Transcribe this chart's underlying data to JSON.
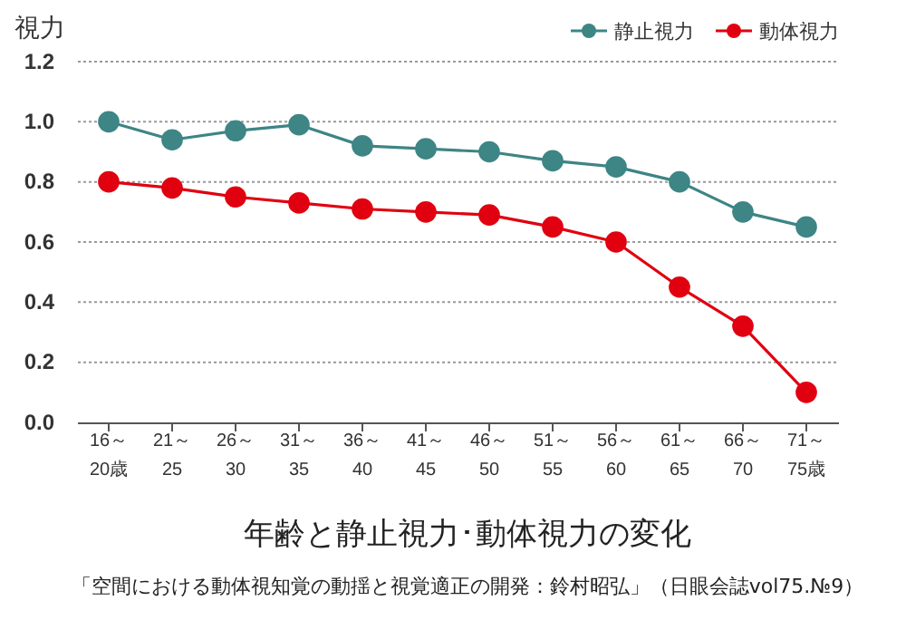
{
  "chart_data": {
    "type": "line",
    "ylabel": "視力",
    "title": "年齢と静止視力･動体視力の変化",
    "annotations": [
      "「空間における動体視知覚の動揺と視覚適正の開発：鈴村昭弘」（日眼会誌vol75.№9）"
    ],
    "categories": [
      "16～\n20歳",
      "21～\n25",
      "26～\n30",
      "31～\n35",
      "36～\n40",
      "41～\n45",
      "46～\n50",
      "51～\n55",
      "56～\n60",
      "61～\n65",
      "66～\n70",
      "71～\n75歳"
    ],
    "series": [
      {
        "name": "静止視力",
        "color": "#3e8585",
        "values": [
          1.0,
          0.94,
          0.97,
          0.99,
          0.92,
          0.91,
          0.9,
          0.87,
          0.85,
          0.8,
          0.7,
          0.65
        ]
      },
      {
        "name": "動体視力",
        "color": "#e00010",
        "values": [
          0.8,
          0.78,
          0.75,
          0.73,
          0.71,
          0.7,
          0.69,
          0.65,
          0.6,
          0.45,
          0.32,
          0.1
        ]
      }
    ],
    "ylim": [
      0,
      1.2
    ],
    "yticks": [
      {
        "value": 0,
        "label": "0.0"
      },
      {
        "value": 0.2,
        "label": "0.2"
      },
      {
        "value": 0.4,
        "label": "0.4"
      },
      {
        "value": 0.6,
        "label": "0.6"
      },
      {
        "value": 0.8,
        "label": "0.8"
      },
      {
        "value": 1.0,
        "label": "1.0"
      },
      {
        "value": 1.2,
        "label": "1.2"
      }
    ],
    "grid": "y",
    "legend": "top right",
    "marker": "circle",
    "line_style": "solid"
  }
}
